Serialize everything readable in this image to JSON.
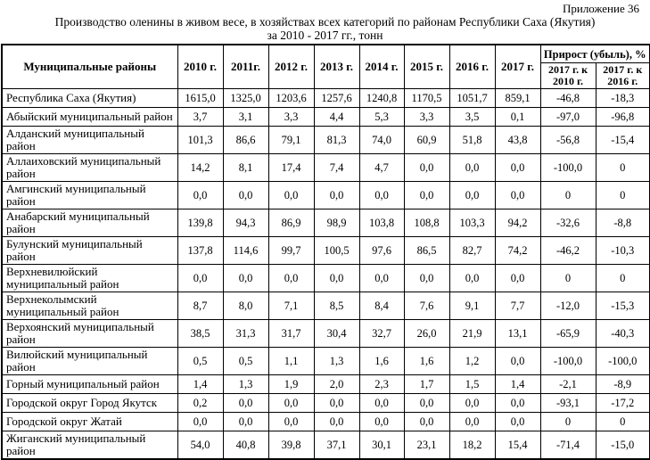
{
  "page": {
    "appendix_label": "Приложение 36",
    "title_line1": "Производство оленины в живом весе, в хозяйствах всех категорий по районам Республики Саха (Якутия)",
    "title_line2": "за 2010 - 2017 гг., тонн"
  },
  "table": {
    "district_header": "Муниципальные районы",
    "year_headers": [
      "2010 г.",
      "2011г.",
      "2012 г.",
      "2013 г.",
      "2014 г.",
      "2015 г.",
      "2016 г.",
      "2017 г."
    ],
    "growth_header": "Прирост (убыль), %",
    "growth_subheaders": [
      "2017 г. к 2010 г.",
      "2017 г. к 2016 г."
    ],
    "rows": [
      {
        "name": "Республика Саха (Якутия)",
        "values": [
          "1615,0",
          "1325,0",
          "1203,6",
          "1257,6",
          "1240,8",
          "1170,5",
          "1051,7",
          "859,1",
          "-46,8",
          "-18,3"
        ]
      },
      {
        "name": "Абыйский муниципальный район",
        "values": [
          "3,7",
          "3,1",
          "3,3",
          "4,4",
          "5,3",
          "3,3",
          "3,5",
          "0,1",
          "-97,0",
          "-96,8"
        ]
      },
      {
        "name": "Алданский муниципальный район",
        "values": [
          "101,3",
          "86,6",
          "79,1",
          "81,3",
          "74,0",
          "60,9",
          "51,8",
          "43,8",
          "-56,8",
          "-15,4"
        ]
      },
      {
        "name": "Аллаиховский муниципальный район",
        "values": [
          "14,2",
          "8,1",
          "17,4",
          "7,4",
          "4,7",
          "0,0",
          "0,0",
          "0,0",
          "-100,0",
          "0"
        ]
      },
      {
        "name": "Амгинский муниципальный район",
        "values": [
          "0,0",
          "0,0",
          "0,0",
          "0,0",
          "0,0",
          "0,0",
          "0,0",
          "0,0",
          "0",
          "0"
        ]
      },
      {
        "name": "Анабарский муниципальный район",
        "values": [
          "139,8",
          "94,3",
          "86,9",
          "98,9",
          "103,8",
          "108,8",
          "103,3",
          "94,2",
          "-32,6",
          "-8,8"
        ]
      },
      {
        "name": "Булунский муниципальный район",
        "values": [
          "137,8",
          "114,6",
          "99,7",
          "100,5",
          "97,6",
          "86,5",
          "82,7",
          "74,2",
          "-46,2",
          "-10,3"
        ]
      },
      {
        "name": "Верхневилюйский муниципальный район",
        "values": [
          "0,0",
          "0,0",
          "0,0",
          "0,0",
          "0,0",
          "0,0",
          "0,0",
          "0,0",
          "0",
          "0"
        ]
      },
      {
        "name": "Верхнеколымский муниципальный район",
        "values": [
          "8,7",
          "8,0",
          "7,1",
          "8,5",
          "8,4",
          "7,6",
          "9,1",
          "7,7",
          "-12,0",
          "-15,3"
        ]
      },
      {
        "name": "Верхоянский муниципальный район",
        "values": [
          "38,5",
          "31,3",
          "31,7",
          "30,4",
          "32,7",
          "26,0",
          "21,9",
          "13,1",
          "-65,9",
          "-40,3"
        ]
      },
      {
        "name": "Вилюйский муниципальный район",
        "values": [
          "0,5",
          "0,5",
          "1,1",
          "1,3",
          "1,6",
          "1,6",
          "1,2",
          "0,0",
          "-100,0",
          "-100,0"
        ]
      },
      {
        "name": "Горный муниципальный район",
        "values": [
          "1,4",
          "1,3",
          "1,9",
          "2,0",
          "2,3",
          "1,7",
          "1,5",
          "1,4",
          "-2,1",
          "-8,9"
        ]
      },
      {
        "name": "Городской округ Город Якутск",
        "values": [
          "0,2",
          "0,0",
          "0,0",
          "0,0",
          "0,0",
          "0,0",
          "0,0",
          "0,0",
          "-93,1",
          "-17,2"
        ]
      },
      {
        "name": "Городской округ Жатай",
        "values": [
          "0,0",
          "0,0",
          "0,0",
          "0,0",
          "0,0",
          "0,0",
          "0,0",
          "0,0",
          "0",
          "0"
        ]
      },
      {
        "name": "Жиганский муниципальный район",
        "values": [
          "54,0",
          "40,8",
          "39,8",
          "37,1",
          "30,1",
          "23,1",
          "18,2",
          "15,4",
          "-71,4",
          "-15,0"
        ]
      }
    ]
  }
}
